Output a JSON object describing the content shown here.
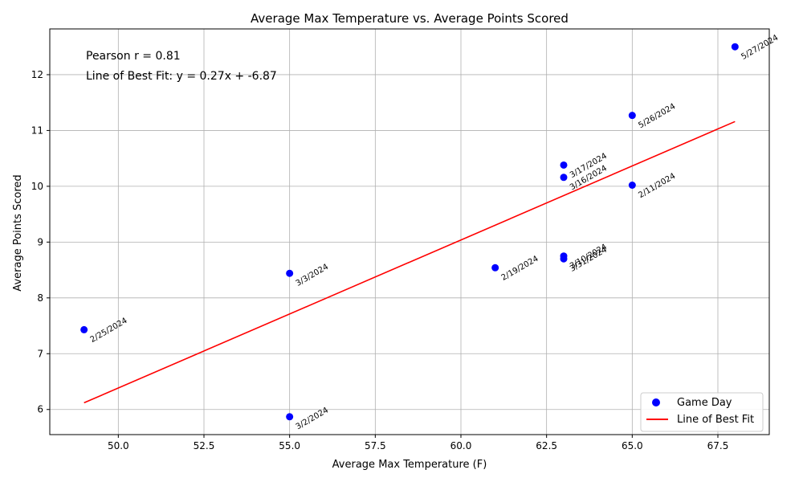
{
  "chart_data": {
    "type": "scatter",
    "title": "Average Max Temperature vs. Average Points Scored",
    "xlabel": "Average Max Temperature (F)",
    "ylabel": "Average Points Scored",
    "xlim": [
      48.0,
      69.0
    ],
    "ylim": [
      5.55,
      12.82
    ],
    "x_ticks": [
      "50.0",
      "52.5",
      "55.0",
      "57.5",
      "60.0",
      "62.5",
      "65.0",
      "67.5"
    ],
    "x_tick_values": [
      50.0,
      52.5,
      55.0,
      57.5,
      60.0,
      62.5,
      65.0,
      67.5
    ],
    "y_ticks": [
      "6",
      "7",
      "8",
      "9",
      "10",
      "11",
      "12"
    ],
    "y_tick_values": [
      6,
      7,
      8,
      9,
      10,
      11,
      12
    ],
    "grid": true,
    "series": [
      {
        "name": "Game Day",
        "color": "#0000ff",
        "points": [
          {
            "x": 68,
            "y": 12.5,
            "label": "5/27/2024"
          },
          {
            "x": 65,
            "y": 11.27,
            "label": "5/26/2024"
          },
          {
            "x": 63,
            "y": 10.38,
            "label": "3/17/2024"
          },
          {
            "x": 63,
            "y": 10.16,
            "label": "3/16/2024"
          },
          {
            "x": 65,
            "y": 10.02,
            "label": "2/11/2024"
          },
          {
            "x": 63,
            "y": 8.75,
            "label": "3/10/2024"
          },
          {
            "x": 63,
            "y": 8.7,
            "label": "3/31/2024"
          },
          {
            "x": 61,
            "y": 8.54,
            "label": "2/19/2024"
          },
          {
            "x": 55,
            "y": 8.44,
            "label": "3/3/2024"
          },
          {
            "x": 49,
            "y": 7.43,
            "label": "2/25/2024"
          },
          {
            "x": 55,
            "y": 5.87,
            "label": "3/2/2024"
          }
        ]
      },
      {
        "name": "Line of Best Fit",
        "color": "#ff0000",
        "type": "line",
        "points": [
          {
            "x": 49,
            "y": 6.12
          },
          {
            "x": 68,
            "y": 11.16
          }
        ]
      }
    ],
    "annotations": [
      "Pearson r = 0.81",
      "Line of Best Fit: y = 0.27x + -6.87"
    ],
    "legend": {
      "placement": "lower-right",
      "entries": [
        "Game Day",
        "Line of Best Fit"
      ]
    }
  }
}
